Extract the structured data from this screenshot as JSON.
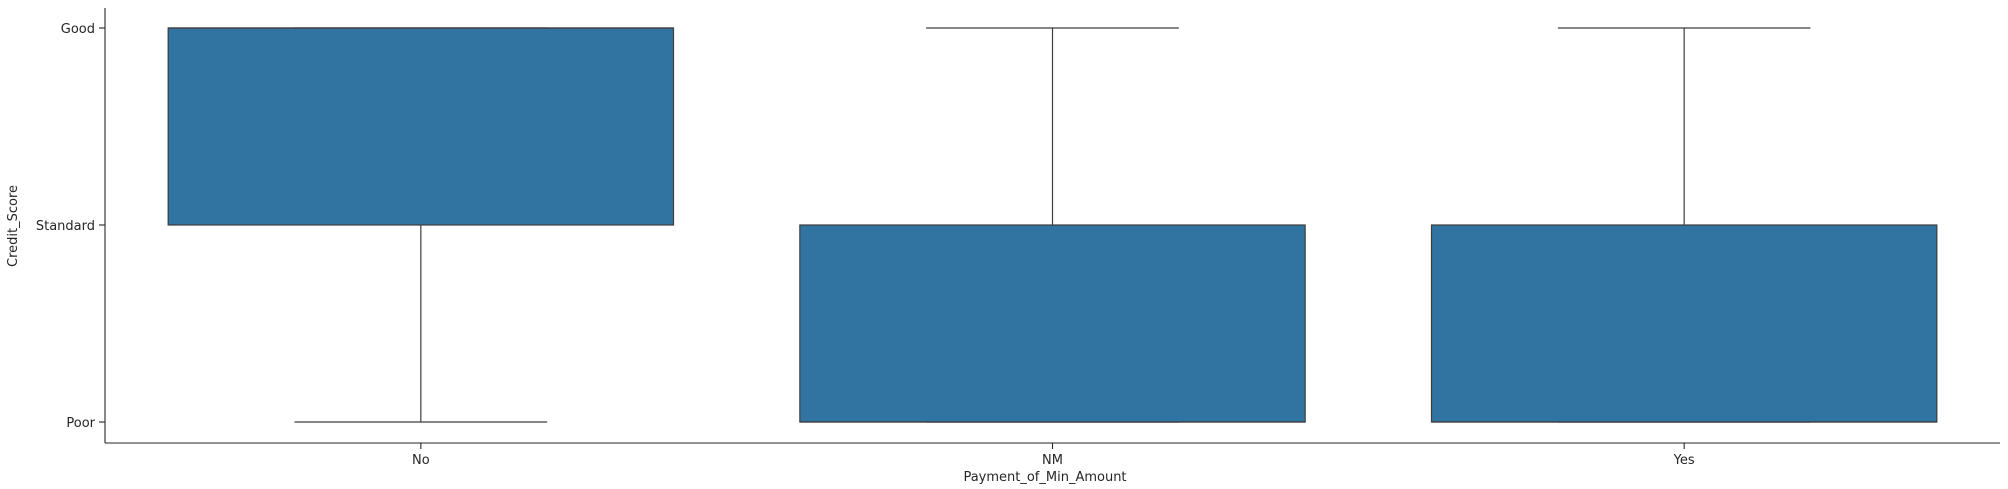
{
  "chart_data": {
    "type": "box",
    "title": "",
    "xlabel": "Payment_of_Min_Amount",
    "ylabel": "Credit_Score",
    "categories": [
      "No",
      "NM",
      "Yes"
    ],
    "y_categories": [
      "Poor",
      "Standard",
      "Good"
    ],
    "y_tick_labels": [
      "Good",
      "Standard",
      "Poor"
    ],
    "ylim": [
      -0.1,
      2.0
    ],
    "box_color": "#3274a1",
    "edge_color": "#3d3d3d",
    "grid": false,
    "legend": "none",
    "series": [
      {
        "name": "No",
        "whisker_low": 0,
        "q1": 1,
        "median": 2,
        "q3": 2,
        "whisker_high": 2
      },
      {
        "name": "NM",
        "whisker_low": 0,
        "q1": 0,
        "median": 0,
        "q3": 1,
        "whisker_high": 2
      },
      {
        "name": "Yes",
        "whisker_low": 0,
        "q1": 0,
        "median": 0,
        "q3": 1,
        "whisker_high": 2
      }
    ]
  }
}
